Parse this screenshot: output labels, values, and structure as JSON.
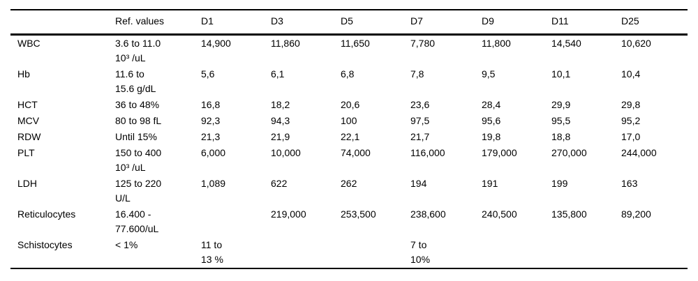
{
  "table": {
    "columns": [
      "",
      "Ref. values",
      "D1",
      "D3",
      "D5",
      "D7",
      "D9",
      "D11",
      "D25"
    ],
    "rows": [
      {
        "label": "WBC",
        "ref": "3.6 to 11.0\n10³ /uL",
        "values": [
          "14,900",
          "11,860",
          "11,650",
          "7,780",
          "11,800",
          "14,540",
          "10,620"
        ]
      },
      {
        "label": "Hb",
        "ref": "11.6 to\n15.6 g/dL",
        "values": [
          "5,6",
          "6,1",
          "6,8",
          "7,8",
          "9,5",
          "10,1",
          "10,4"
        ]
      },
      {
        "label": "HCT",
        "ref": "36 to 48%",
        "values": [
          "16,8",
          "18,2",
          "20,6",
          "23,6",
          "28,4",
          "29,9",
          "29,8"
        ]
      },
      {
        "label": "MCV",
        "ref": "80 to 98 fL",
        "values": [
          "92,3",
          "94,3",
          "100",
          "97,5",
          "95,6",
          "95,5",
          "95,2"
        ]
      },
      {
        "label": "RDW",
        "ref": "Until 15%",
        "values": [
          "21,3",
          "21,9",
          "22,1",
          "21,7",
          "19,8",
          "18,8",
          "17,0"
        ]
      },
      {
        "label": "PLT",
        "ref": "150 to 400\n10³ /uL",
        "values": [
          "6,000",
          "10,000",
          "74,000",
          "116,000",
          "179,000",
          "270,000",
          "244,000"
        ]
      },
      {
        "label": "LDH",
        "ref": "125 to 220\nU/L",
        "values": [
          "1,089",
          "622",
          "262",
          "194",
          "191",
          "199",
          "163"
        ]
      },
      {
        "label": "Reticulocytes",
        "ref": "16.400 -\n77.600/uL",
        "values": [
          "",
          "219,000",
          "253,500",
          "238,600",
          "240,500",
          "135,800",
          "89,200"
        ]
      },
      {
        "label": "Schistocytes",
        "ref": "< 1%",
        "values": [
          "11 to\n13 %",
          "",
          "",
          "7 to\n10%",
          "",
          "",
          ""
        ]
      }
    ]
  }
}
